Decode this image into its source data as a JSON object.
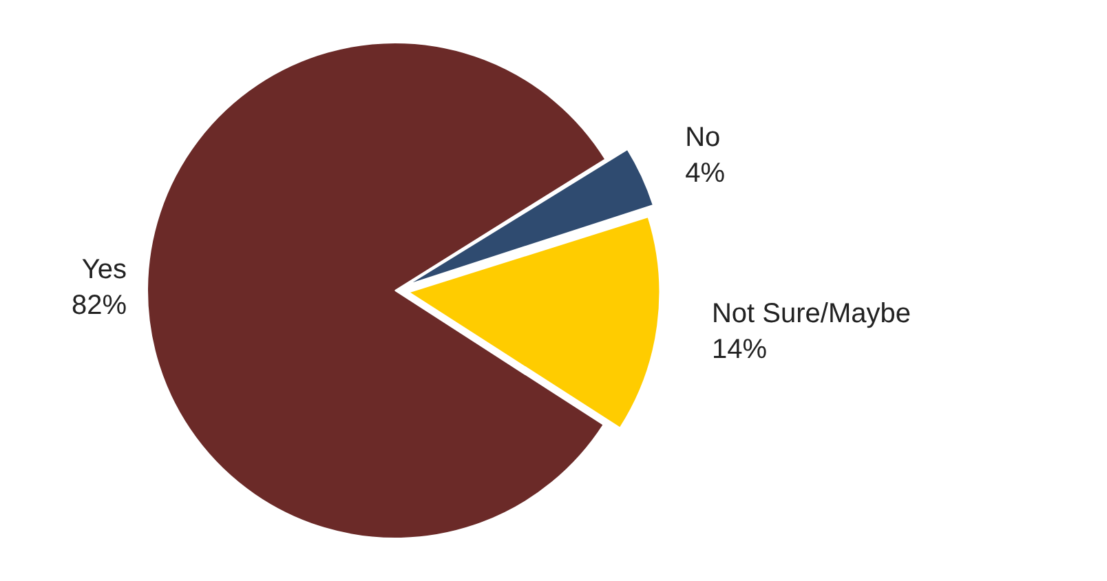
{
  "chart_data": {
    "type": "pie",
    "categories": [
      "No",
      "Not Sure/Maybe",
      "Yes"
    ],
    "values": [
      4,
      14,
      82
    ],
    "value_labels": [
      "4%",
      "14%",
      "82%"
    ],
    "colors": [
      "#2f4b70",
      "#ffcc00",
      "#6b2a28"
    ],
    "legend": false
  }
}
